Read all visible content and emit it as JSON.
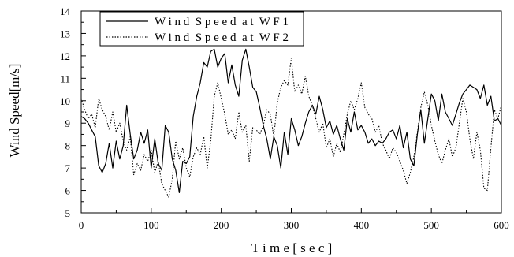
{
  "chart_data": {
    "type": "line",
    "title": "",
    "xlabel": "T i m e [ s e c ]",
    "ylabel": "Wind Speed[m/s]",
    "xlim": [
      0,
      600
    ],
    "ylim": [
      5,
      14
    ],
    "xticks": [
      0,
      100,
      200,
      300,
      400,
      500,
      600
    ],
    "yticks": [
      5,
      6,
      7,
      8,
      9,
      10,
      11,
      12,
      13,
      14
    ],
    "grid": false,
    "legend_position": "top-left",
    "series": [
      {
        "name": "W i n d  S p e e d  a t  W F 1",
        "style": "solid",
        "color": "#000000",
        "x": [
          0,
          5,
          10,
          15,
          20,
          25,
          30,
          35,
          40,
          45,
          50,
          55,
          60,
          65,
          70,
          75,
          80,
          85,
          90,
          95,
          100,
          105,
          110,
          115,
          120,
          125,
          130,
          135,
          140,
          145,
          150,
          155,
          160,
          165,
          170,
          175,
          180,
          185,
          190,
          195,
          200,
          205,
          210,
          215,
          220,
          225,
          230,
          235,
          240,
          245,
          250,
          255,
          260,
          265,
          270,
          275,
          280,
          285,
          290,
          295,
          300,
          305,
          310,
          315,
          320,
          325,
          330,
          335,
          340,
          345,
          350,
          355,
          360,
          365,
          370,
          375,
          380,
          385,
          390,
          395,
          400,
          405,
          410,
          415,
          420,
          425,
          430,
          435,
          440,
          445,
          450,
          455,
          460,
          465,
          470,
          475,
          480,
          485,
          490,
          495,
          500,
          505,
          510,
          515,
          520,
          525,
          530,
          535,
          540,
          545,
          550,
          555,
          560,
          565,
          570,
          575,
          580,
          585,
          590,
          595,
          600
        ],
        "y": [
          9.3,
          9.2,
          9.0,
          8.7,
          8.4,
          7.1,
          6.8,
          7.2,
          8.1,
          7.0,
          8.2,
          7.4,
          8.0,
          9.8,
          8.5,
          7.4,
          7.8,
          8.6,
          8.1,
          8.7,
          7.0,
          8.3,
          7.2,
          6.9,
          8.9,
          8.6,
          7.4,
          6.9,
          5.9,
          7.3,
          7.2,
          7.5,
          9.3,
          10.2,
          10.8,
          11.7,
          11.5,
          12.2,
          12.3,
          11.5,
          11.9,
          12.1,
          10.8,
          11.6,
          10.7,
          10.2,
          11.8,
          12.3,
          11.5,
          10.6,
          10.4,
          9.7,
          8.9,
          8.3,
          7.4,
          8.4,
          8.0,
          7.0,
          8.6,
          7.6,
          9.2,
          8.7,
          8.0,
          8.4,
          9.0,
          9.5,
          9.8,
          9.4,
          10.2,
          9.6,
          8.8,
          9.1,
          8.5,
          8.9,
          8.3,
          7.8,
          9.2,
          8.6,
          9.5,
          8.7,
          8.9,
          8.6,
          8.1,
          8.3,
          8.0,
          8.2,
          8.1,
          8.3,
          8.6,
          8.7,
          8.3,
          8.9,
          7.9,
          8.6,
          7.4,
          7.1,
          8.5,
          9.6,
          8.1,
          9.2,
          10.3,
          10.0,
          9.1,
          10.3,
          9.5,
          9.2,
          8.9,
          9.4,
          9.9,
          10.3,
          10.5,
          10.7,
          10.6,
          10.5,
          10.1,
          10.7,
          9.8,
          10.2,
          9.1,
          9.2,
          8.9
        ]
      },
      {
        "name": "W i n d  S p e e d  a t  W F 2",
        "style": "dotted",
        "color": "#000000",
        "x": [
          0,
          5,
          10,
          15,
          20,
          25,
          30,
          35,
          40,
          45,
          50,
          55,
          60,
          65,
          70,
          75,
          80,
          85,
          90,
          95,
          100,
          105,
          110,
          115,
          120,
          125,
          130,
          135,
          140,
          145,
          150,
          155,
          160,
          165,
          170,
          175,
          180,
          185,
          190,
          195,
          200,
          205,
          210,
          215,
          220,
          225,
          230,
          235,
          240,
          245,
          250,
          255,
          260,
          265,
          270,
          275,
          280,
          285,
          290,
          295,
          300,
          305,
          310,
          315,
          320,
          325,
          330,
          335,
          340,
          345,
          350,
          355,
          360,
          365,
          370,
          375,
          380,
          385,
          390,
          395,
          400,
          405,
          410,
          415,
          420,
          425,
          430,
          435,
          440,
          445,
          450,
          455,
          460,
          465,
          470,
          475,
          480,
          485,
          490,
          495,
          500,
          505,
          510,
          515,
          520,
          525,
          530,
          535,
          540,
          545,
          550,
          555,
          560,
          565,
          570,
          575,
          580,
          585,
          590,
          595,
          600
        ],
        "y": [
          10.1,
          9.6,
          9.2,
          9.4,
          8.8,
          10.1,
          9.6,
          9.3,
          8.7,
          9.5,
          8.6,
          9.0,
          8.2,
          7.8,
          8.4,
          6.7,
          7.2,
          6.9,
          7.6,
          7.3,
          7.8,
          6.8,
          7.3,
          6.3,
          6.0,
          5.7,
          6.5,
          8.2,
          7.4,
          7.9,
          7.0,
          6.6,
          7.5,
          7.9,
          7.6,
          8.4,
          7.0,
          8.2,
          10.2,
          10.8,
          10.1,
          9.4,
          8.5,
          8.7,
          8.3,
          9.5,
          8.6,
          8.9,
          7.3,
          8.8,
          8.7,
          8.5,
          8.9,
          9.6,
          9.4,
          8.4,
          9.9,
          10.6,
          10.9,
          10.7,
          11.9,
          10.4,
          10.7,
          10.3,
          11.1,
          10.2,
          9.8,
          9.2,
          8.6,
          9.0,
          7.9,
          8.3,
          7.5,
          8.1,
          7.7,
          8.5,
          9.4,
          10.0,
          9.6,
          10.1,
          10.8,
          9.7,
          9.4,
          9.2,
          8.6,
          8.9,
          8.1,
          7.8,
          7.4,
          7.9,
          7.7,
          7.3,
          6.9,
          6.3,
          6.8,
          7.5,
          8.6,
          9.7,
          10.4,
          9.8,
          8.9,
          8.2,
          7.6,
          7.2,
          7.8,
          8.3,
          7.5,
          7.9,
          9.0,
          10.1,
          9.5,
          8.3,
          7.4,
          8.6,
          7.8,
          6.1,
          6.0,
          7.9,
          9.6,
          9.2,
          9.8
        ]
      }
    ]
  }
}
